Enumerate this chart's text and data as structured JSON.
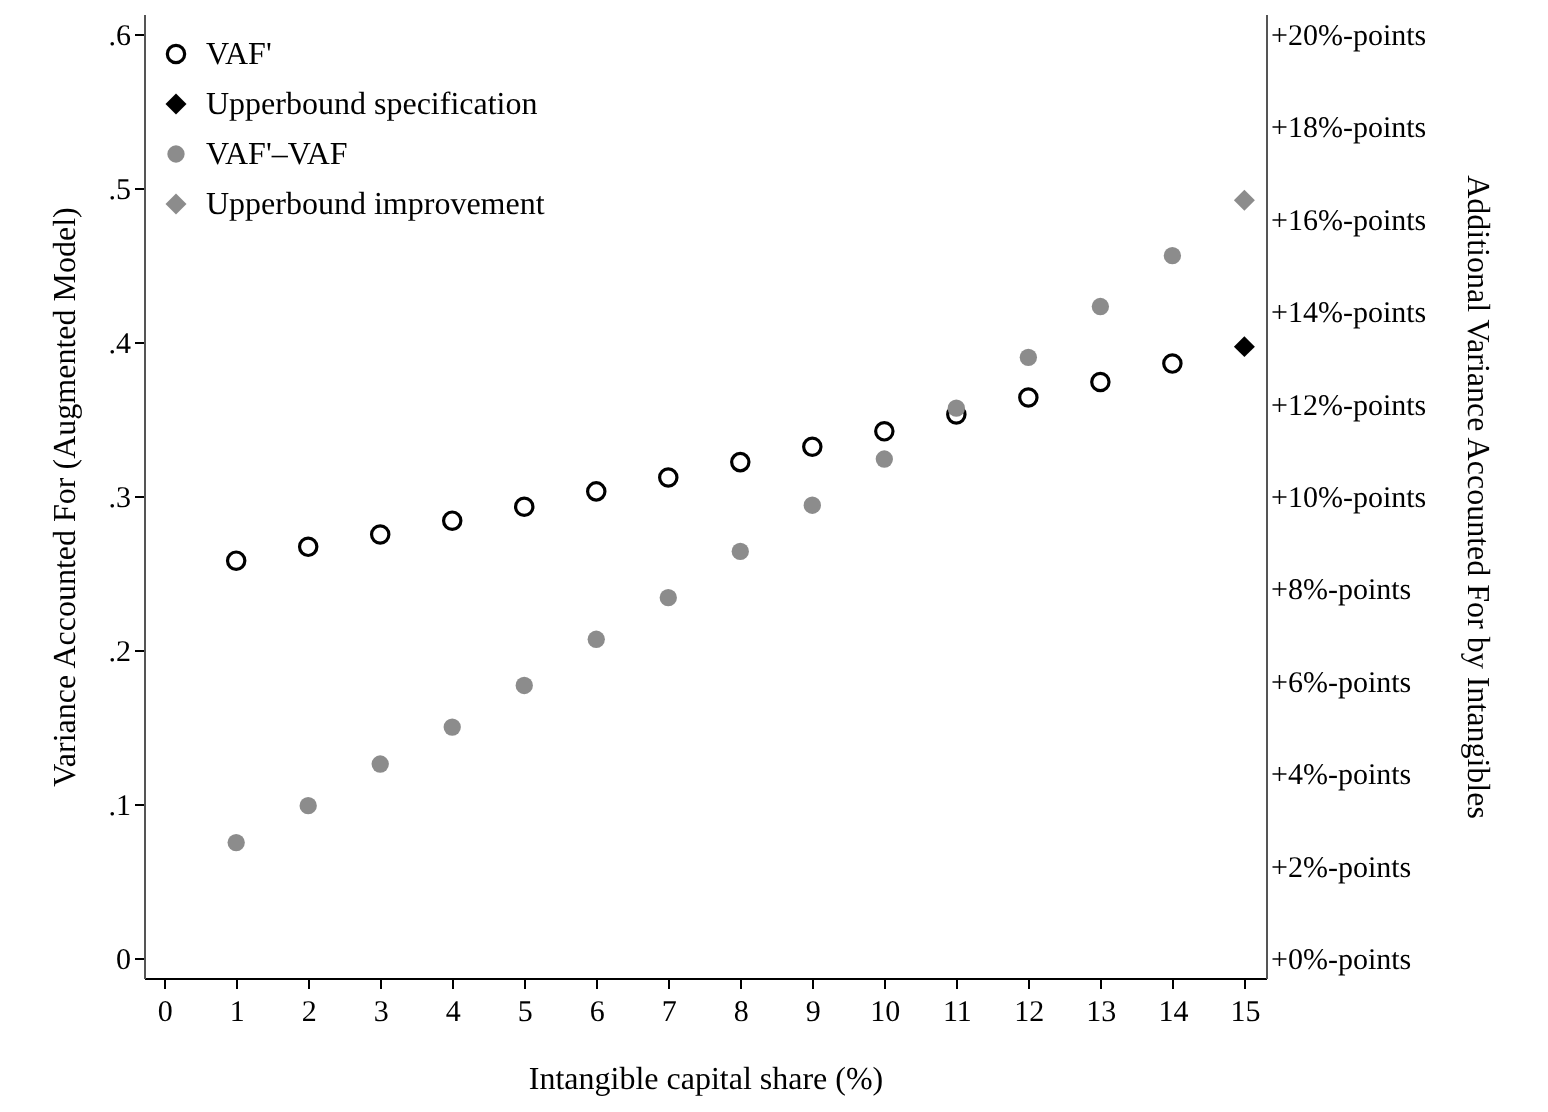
{
  "chart_data": {
    "type": "scatter",
    "xlabel": "Intangible capital share (%)",
    "ylabel": "Variance Accounted For (Augmented Model)",
    "y2label": "Additional Variance Accounted For by Intangibles",
    "xlim": [
      -0.28,
      15.3
    ],
    "xticks": [
      0,
      1,
      2,
      3,
      4,
      5,
      6,
      7,
      8,
      9,
      10,
      11,
      12,
      13,
      14,
      15
    ],
    "ylim": [
      -0.013,
      0.613
    ],
    "yticks": [
      0,
      {
        "value": 0.1,
        "label": ".1"
      },
      {
        "value": 0.2,
        "label": ".2"
      },
      {
        "value": 0.3,
        "label": ".3"
      },
      {
        "value": 0.4,
        "label": ".4"
      },
      {
        "value": 0.5,
        "label": ".5"
      },
      {
        "value": 0.6,
        "label": ".6"
      }
    ],
    "y2lim": [
      -0.43,
      20.43
    ],
    "y2ticks": [
      {
        "value": 0,
        "label": "+0%-points"
      },
      {
        "value": 2,
        "label": "+2%-points"
      },
      {
        "value": 4,
        "label": "+4%-points"
      },
      {
        "value": 6,
        "label": "+6%-points"
      },
      {
        "value": 8,
        "label": "+8%-points"
      },
      {
        "value": 10,
        "label": "+10%-points"
      },
      {
        "value": 12,
        "label": "+12%-points"
      },
      {
        "value": 14,
        "label": "+14%-points"
      },
      {
        "value": 16,
        "label": "+16%-points"
      },
      {
        "value": 18,
        "label": "+18%-points"
      },
      {
        "value": 20,
        "label": "+20%-points"
      }
    ],
    "grid": false,
    "legend": "top left",
    "series": [
      {
        "name": "VAF'",
        "color": "#000000",
        "marker": "circle",
        "x": [
          1,
          2,
          3,
          4,
          5,
          6,
          7,
          8,
          9,
          10,
          11,
          12,
          13,
          14
        ],
        "values": [
          0.258,
          0.267,
          0.275,
          0.284,
          0.293,
          0.303,
          0.312,
          0.322,
          0.332,
          0.342,
          0.353,
          0.364,
          0.374,
          0.386
        ]
      },
      {
        "name": "Upperbound specification",
        "color": "#000000",
        "marker": "diamond",
        "x": [
          15
        ],
        "values": [
          0.397
        ]
      },
      {
        "name": "VAF'–VAF",
        "color": "#8c8c8c",
        "marker": "circle",
        "axis": "y2",
        "x": [
          1,
          2,
          3,
          4,
          5,
          6,
          7,
          8,
          9,
          10,
          11,
          12,
          13,
          14
        ],
        "values": [
          2.5,
          3.3,
          4.2,
          5.0,
          5.9,
          6.9,
          7.8,
          8.8,
          9.8,
          10.8,
          11.9,
          13.0,
          14.1,
          15.2
        ]
      },
      {
        "name": "Upperbound improvement",
        "color": "#8c8c8c",
        "marker": "diamond",
        "axis": "y2",
        "x": [
          15
        ],
        "values": [
          16.4
        ]
      }
    ]
  }
}
